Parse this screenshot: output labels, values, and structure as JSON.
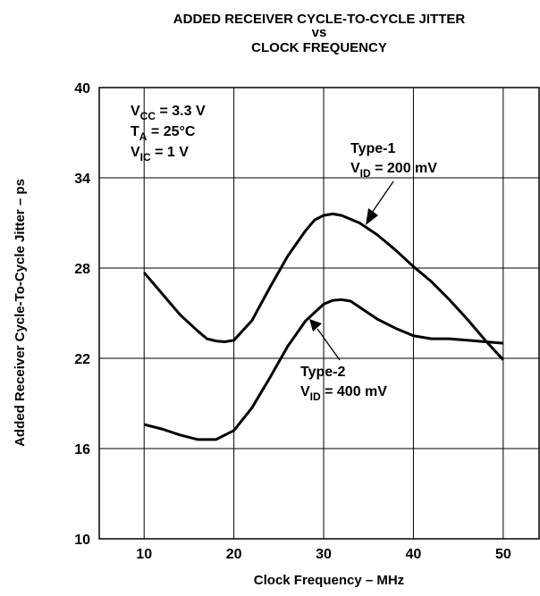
{
  "chart_data": {
    "type": "line",
    "title": [
      "ADDED RECEIVER CYCLE-TO-CYCLE JITTER",
      "vs",
      "CLOCK FREQUENCY"
    ],
    "x_label": "Clock Frequency – MHz",
    "y_label": "Added Receiver Cycle-To-Cycle Jitter – ps",
    "xlim": [
      5,
      54
    ],
    "ylim": [
      10,
      40
    ],
    "xticks": [
      10,
      20,
      30,
      40,
      50
    ],
    "yticks": [
      10,
      16,
      22,
      28,
      34,
      40
    ],
    "grid": true,
    "conditions": [
      {
        "main": "V",
        "sub": "CC",
        "rest": " = 3.3 V"
      },
      {
        "main": "T",
        "sub": "A",
        "rest": " = 25°C"
      },
      {
        "main": "V",
        "sub": "IC",
        "rest": " = 1 V"
      }
    ],
    "series": [
      {
        "name": "Type-1",
        "color": "#000000",
        "note": {
          "main": "V",
          "sub": "ID",
          "rest": " = 200 mV"
        },
        "x": [
          10,
          12,
          14,
          16,
          17,
          18,
          19,
          20,
          22,
          24,
          26,
          28,
          29,
          30,
          31,
          32,
          34,
          36,
          38,
          40,
          42,
          44,
          46,
          48,
          50
        ],
        "values": [
          27.7,
          26.3,
          24.9,
          23.8,
          23.3,
          23.15,
          23.1,
          23.2,
          24.5,
          26.7,
          28.8,
          30.5,
          31.2,
          31.5,
          31.6,
          31.5,
          31.0,
          30.2,
          29.2,
          28.1,
          27.1,
          25.9,
          24.6,
          23.2,
          21.9
        ]
      },
      {
        "name": "Type-2",
        "color": "#000000",
        "note": {
          "main": "V",
          "sub": "ID",
          "rest": " = 400 mV"
        },
        "x": [
          10,
          12,
          14,
          16,
          18,
          20,
          22,
          24,
          26,
          28,
          30,
          31,
          32,
          33,
          34,
          36,
          38,
          40,
          42,
          44,
          46,
          48,
          50
        ],
        "values": [
          17.6,
          17.3,
          16.9,
          16.6,
          16.6,
          17.2,
          18.7,
          20.7,
          22.8,
          24.5,
          25.6,
          25.85,
          25.9,
          25.8,
          25.4,
          24.6,
          24.0,
          23.5,
          23.3,
          23.3,
          23.2,
          23.1,
          23.0
        ]
      }
    ]
  }
}
